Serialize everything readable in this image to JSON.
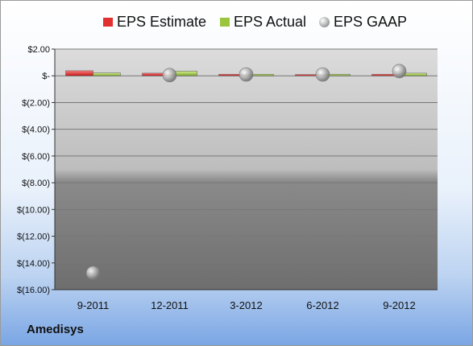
{
  "company": "Amedisys",
  "legend": {
    "estimate": "EPS Estimate",
    "actual": "EPS Actual",
    "gaap": "EPS GAAP"
  },
  "colors": {
    "estimate": "#e03030",
    "actual": "#9bc53d",
    "gaap": "#a0a0a0",
    "grid": "#777777"
  },
  "chart_data": {
    "type": "bar",
    "categories": [
      "9-2011",
      "12-2011",
      "3-2012",
      "6-2012",
      "9-2012"
    ],
    "series": [
      {
        "name": "EPS Estimate",
        "type": "bar",
        "values": [
          0.38,
          0.2,
          0.12,
          0.1,
          0.12
        ]
      },
      {
        "name": "EPS Actual",
        "type": "bar",
        "values": [
          0.22,
          0.35,
          0.12,
          0.12,
          0.2
        ]
      },
      {
        "name": "EPS GAAP",
        "type": "scatter",
        "values": [
          -14.75,
          0.05,
          0.1,
          0.1,
          0.35
        ]
      }
    ],
    "ylim": [
      -16,
      2
    ],
    "yticks": [
      2,
      0,
      -2,
      -4,
      -6,
      -8,
      -10,
      -12,
      -14,
      -16
    ],
    "ytick_labels": [
      "$2.00",
      "$-",
      "$(2.00)",
      "$(4.00)",
      "$(6.00)",
      "$(8.00)",
      "$(10.00)",
      "$(12.00)",
      "$(14.00)",
      "$(16.00)"
    ],
    "grid": true,
    "legend_position": "top"
  }
}
